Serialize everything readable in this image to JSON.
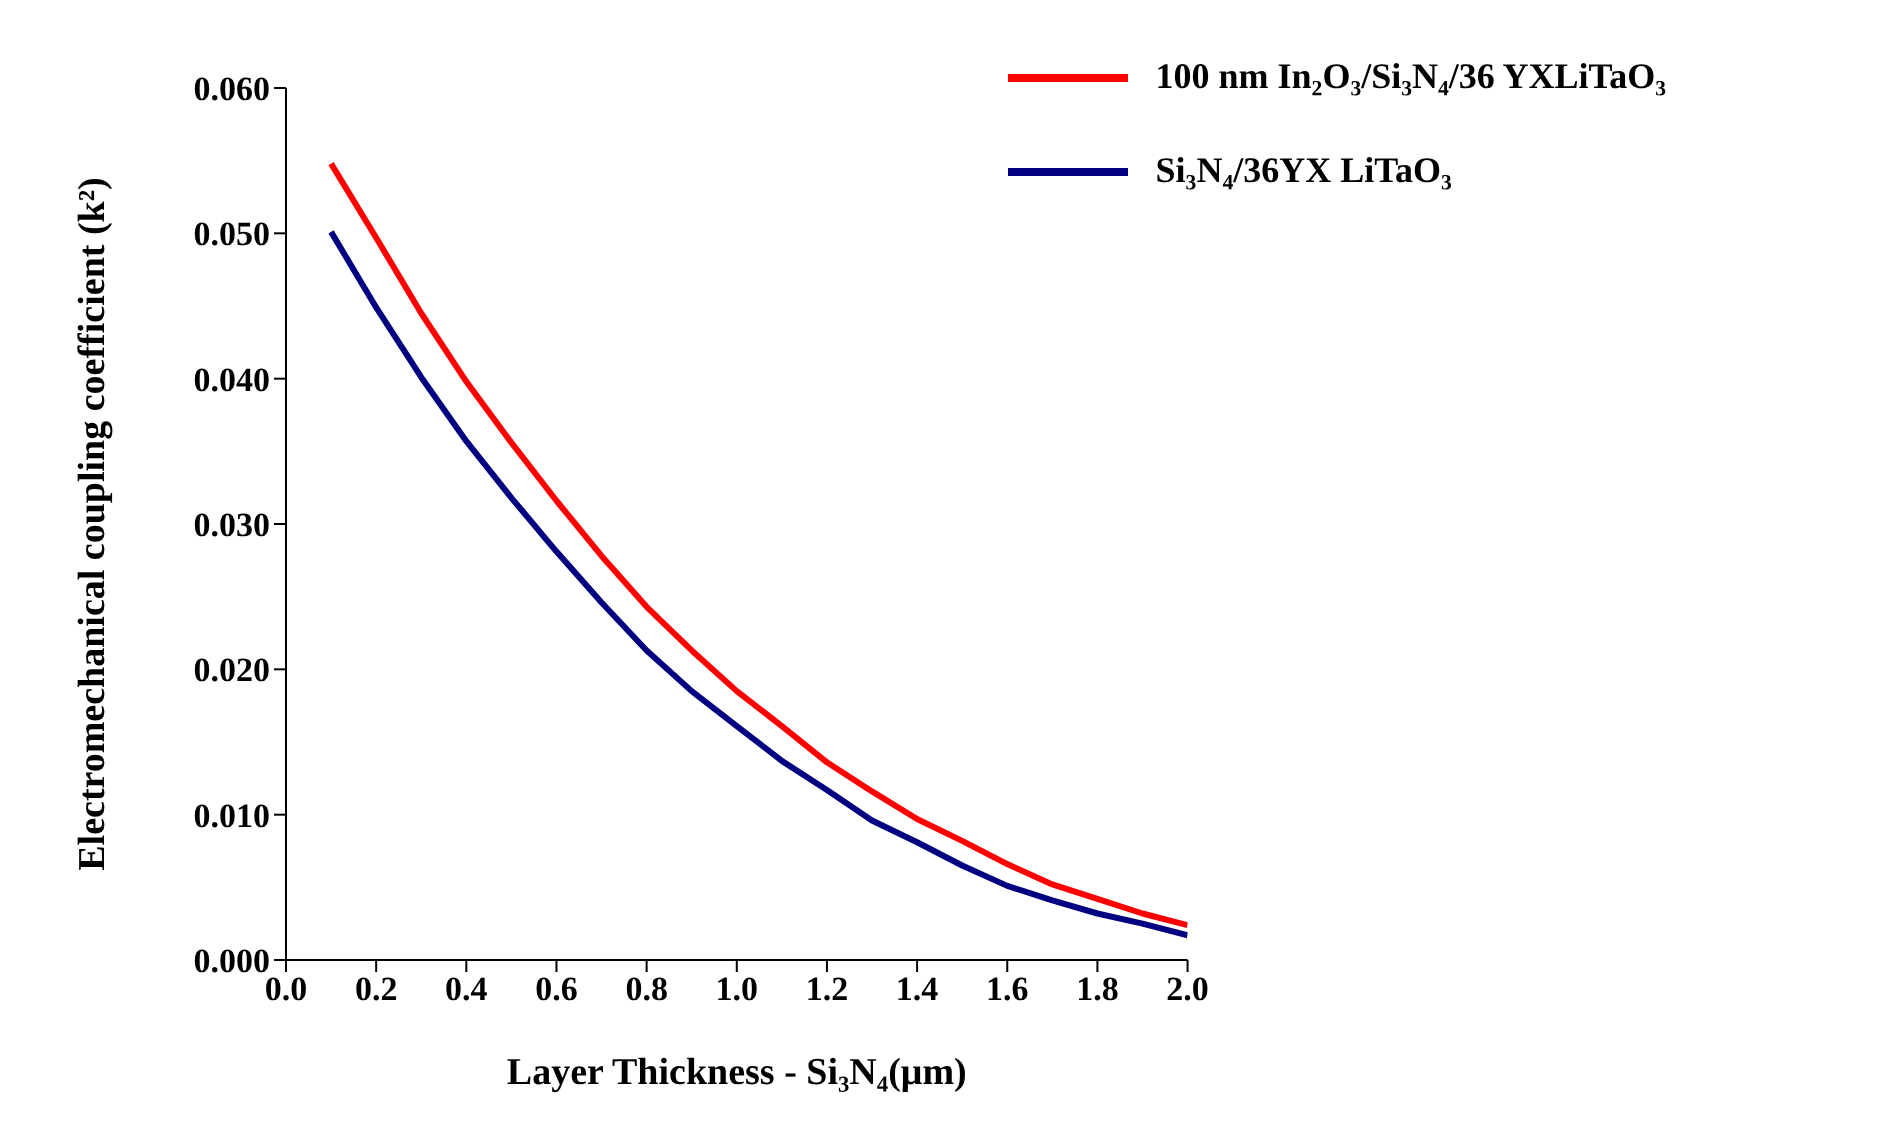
{
  "chart_data": {
    "type": "line",
    "xlabel": "Layer Thickness - Si₃N₄(μm)",
    "ylabel": "Electromechanical coupling coefficient  (k²)",
    "x": [
      0.1,
      0.2,
      0.3,
      0.4,
      0.5,
      0.6,
      0.7,
      0.8,
      0.9,
      1.0,
      1.1,
      1.2,
      1.3,
      1.4,
      1.5,
      1.6,
      1.7,
      1.8,
      1.9,
      2.0
    ],
    "series": [
      {
        "name": "100 nm In₂O₃/Si₃N₄/36 YXLiTaO₃",
        "color": "#ff0000",
        "values": [
          0.0548,
          0.0497,
          0.0445,
          0.0398,
          0.0356,
          0.0316,
          0.0278,
          0.0243,
          0.0213,
          0.0185,
          0.0161,
          0.0136,
          0.0116,
          0.0097,
          0.0082,
          0.0066,
          0.0052,
          0.0042,
          0.0032,
          0.0024
        ]
      },
      {
        "name": "Si₃N₄/36YX LiTaO₃",
        "color": "#000080",
        "values": [
          0.0501,
          0.0449,
          0.0401,
          0.0357,
          0.0318,
          0.0281,
          0.0246,
          0.0213,
          0.0185,
          0.0161,
          0.0137,
          0.0117,
          0.0096,
          0.0081,
          0.0065,
          0.0051,
          0.0041,
          0.0032,
          0.0025,
          0.0017
        ]
      }
    ],
    "xlim": [
      0,
      2.0
    ],
    "xticks": [
      {
        "value": 0,
        "label": "0.0"
      },
      {
        "value": 0.2,
        "label": "0.2"
      },
      {
        "value": 0.4,
        "label": "0.4"
      },
      {
        "value": 0.6,
        "label": "0.6"
      },
      {
        "value": 0.8,
        "label": "0.8"
      },
      {
        "value": 1.0,
        "label": "1.0"
      },
      {
        "value": 1.2,
        "label": "1.2"
      },
      {
        "value": 1.4,
        "label": "1.4"
      },
      {
        "value": 1.6,
        "label": "1.6"
      },
      {
        "value": 1.8,
        "label": "1.8"
      },
      {
        "value": 2.0,
        "label": "2.0"
      }
    ],
    "ylim": [
      0,
      0.06
    ],
    "yticks": [
      {
        "value": 0,
        "label": "0.000"
      },
      {
        "value": 0.01,
        "label": "0.010"
      },
      {
        "value": 0.02,
        "label": "0.020"
      },
      {
        "value": 0.03,
        "label": "0.030"
      },
      {
        "value": 0.04,
        "label": "0.040"
      },
      {
        "value": 0.05,
        "label": "0.050"
      },
      {
        "value": 0.06,
        "label": "0.060"
      }
    ],
    "grid": false,
    "legend": "top right",
    "line_style": "solid"
  }
}
